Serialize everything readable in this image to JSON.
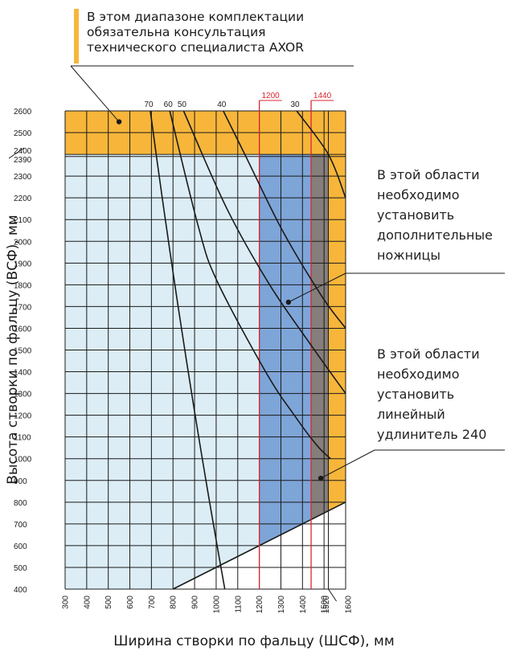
{
  "header_note": {
    "lines": [
      "В этом диапазоне комплектации",
      "обязательна консультация",
      "технического специалиста AXOR"
    ]
  },
  "side_notes": {
    "scissors": [
      "В этой области",
      "необходимо",
      "установить",
      "дополнительные",
      "ножницы"
    ],
    "extender": [
      "В этой области",
      "необходимо",
      "установить",
      "линейный",
      "удлинитель 240"
    ]
  },
  "colors": {
    "consult_zone": "#f7b63a",
    "base_zone": "#dcedf5",
    "scissors_zone": "#7ea5d8",
    "extender_zone": "#867e7a",
    "grid": "#1a1a1a",
    "red_limit": "#d8262f",
    "curves": "#1a1a1a"
  },
  "chart_data": {
    "type": "line",
    "xlabel": "Ширина створки по фальцу (ШСФ), мм",
    "ylabel": "Высота створки по фальцу (ВСФ), мм",
    "xlim": [
      300,
      1600
    ],
    "ylim": [
      400,
      2600
    ],
    "x_ticks": [
      300,
      400,
      500,
      600,
      700,
      800,
      900,
      1000,
      1100,
      1200,
      1300,
      1400,
      1500,
      1520,
      1600
    ],
    "y_ticks": [
      400,
      500,
      600,
      700,
      800,
      900,
      1000,
      1100,
      1200,
      1300,
      1400,
      1500,
      1600,
      1700,
      1800,
      1900,
      2000,
      2100,
      2200,
      2300,
      2390,
      2400,
      2500,
      2600
    ],
    "red_lines": [
      {
        "label": "1200",
        "x": 1200
      },
      {
        "label": "1440",
        "x": 1440
      }
    ],
    "regions": {
      "consult_height_from": 2400,
      "consult_width_from": 1520,
      "scissors_from_width": 1200,
      "extender_from_width": 1440,
      "lower_boundary": [
        [
          800,
          400
        ],
        [
          1200,
          600
        ],
        [
          1600,
          800
        ]
      ]
    },
    "series": [
      {
        "name": "70",
        "points": [
          [
            695,
            2600
          ],
          [
            1040,
            400
          ]
        ]
      },
      {
        "name": "60",
        "points": [
          [
            785,
            2600
          ],
          [
            917,
            2070
          ],
          [
            1003,
            1820
          ],
          [
            1229,
            1400
          ],
          [
            1362,
            1200
          ],
          [
            1468,
            1060
          ],
          [
            1530,
            1000
          ]
        ]
      },
      {
        "name": "50",
        "points": [
          [
            849,
            2600
          ],
          [
            1050,
            2150
          ],
          [
            1248,
            1800
          ],
          [
            1445,
            1515
          ],
          [
            1600,
            1300
          ]
        ]
      },
      {
        "name": "40",
        "points": [
          [
            1033,
            2600
          ],
          [
            1133,
            2400
          ],
          [
            1307,
            2050
          ],
          [
            1488,
            1750
          ],
          [
            1600,
            1600
          ]
        ]
      },
      {
        "name": "30",
        "points": [
          [
            1373,
            2600
          ],
          [
            1520,
            2400
          ],
          [
            1600,
            2200
          ]
        ]
      }
    ],
    "markers": [
      {
        "x": 550,
        "y": 2550
      },
      {
        "x": 1335,
        "y": 1720
      },
      {
        "x": 1485,
        "y": 910
      }
    ]
  }
}
